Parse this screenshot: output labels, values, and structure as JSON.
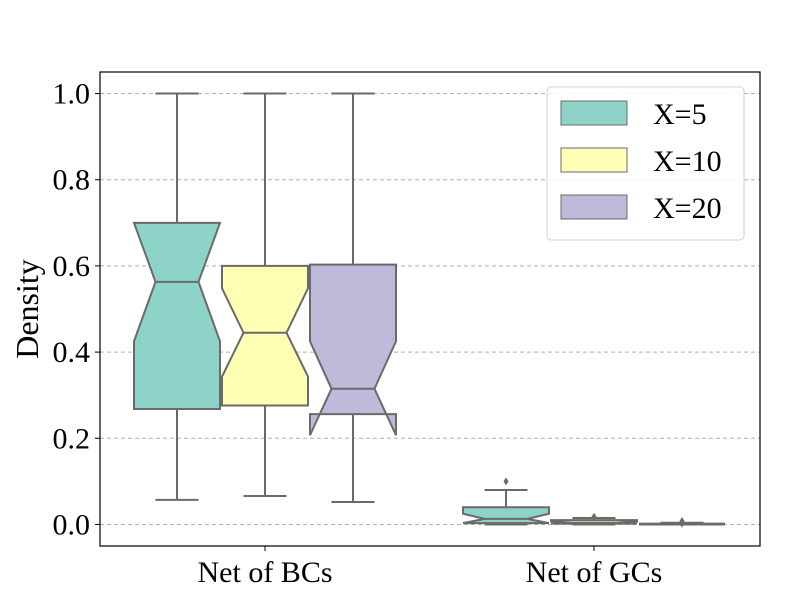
{
  "chart_data": {
    "type": "boxplot",
    "notched": true,
    "title": "",
    "xlabel": "",
    "ylabel": "Density",
    "ylim": [
      -0.05,
      1.05
    ],
    "yticks": [
      "0.0",
      "0.2",
      "0.4",
      "0.6",
      "0.8",
      "1.0"
    ],
    "ytick_values": [
      0.0,
      0.2,
      0.4,
      0.6,
      0.8,
      1.0
    ],
    "grid": "horizontal dashed",
    "legend_position": "top-right",
    "categories": [
      "Net of BCs",
      "Net of GCs"
    ],
    "series": [
      {
        "name": "X=5",
        "color": "#8dd3c7",
        "boxes": [
          {
            "whisker_low": 0.057,
            "q1": 0.268,
            "median": 0.563,
            "q3": 0.7,
            "whisker_high": 1.0,
            "notch_low": 0.425,
            "notch_high": 0.7,
            "fliers": []
          },
          {
            "whisker_low": 0.0,
            "q1": 0.003,
            "median": 0.013,
            "q3": 0.04,
            "whisker_high": 0.08,
            "notch_low": 0.003,
            "notch_high": 0.025,
            "fliers": [
              0.1
            ]
          }
        ]
      },
      {
        "name": "X=10",
        "color": "#ffffb3",
        "boxes": [
          {
            "whisker_low": 0.066,
            "q1": 0.276,
            "median": 0.445,
            "q3": 0.6,
            "whisker_high": 1.0,
            "notch_low": 0.343,
            "notch_high": 0.548,
            "fliers": []
          },
          {
            "whisker_low": 0.0,
            "q1": 0.002,
            "median": 0.004,
            "q3": 0.01,
            "whisker_high": 0.015,
            "notch_low": 0.002,
            "notch_high": 0.007,
            "fliers": [
              0.018
            ]
          }
        ]
      },
      {
        "name": "X=20",
        "color": "#bebada",
        "boxes": [
          {
            "whisker_low": 0.052,
            "q1": 0.256,
            "median": 0.315,
            "q3": 0.603,
            "whisker_high": 1.0,
            "notch_low": 0.207,
            "notch_high": 0.425,
            "fliers": []
          },
          {
            "whisker_low": 0.0,
            "q1": 0.0,
            "median": 0.001,
            "q3": 0.002,
            "whisker_high": 0.004,
            "notch_low": 0.0,
            "notch_high": 0.002,
            "fliers": [
              0.008,
              0.002
            ]
          }
        ]
      }
    ]
  }
}
